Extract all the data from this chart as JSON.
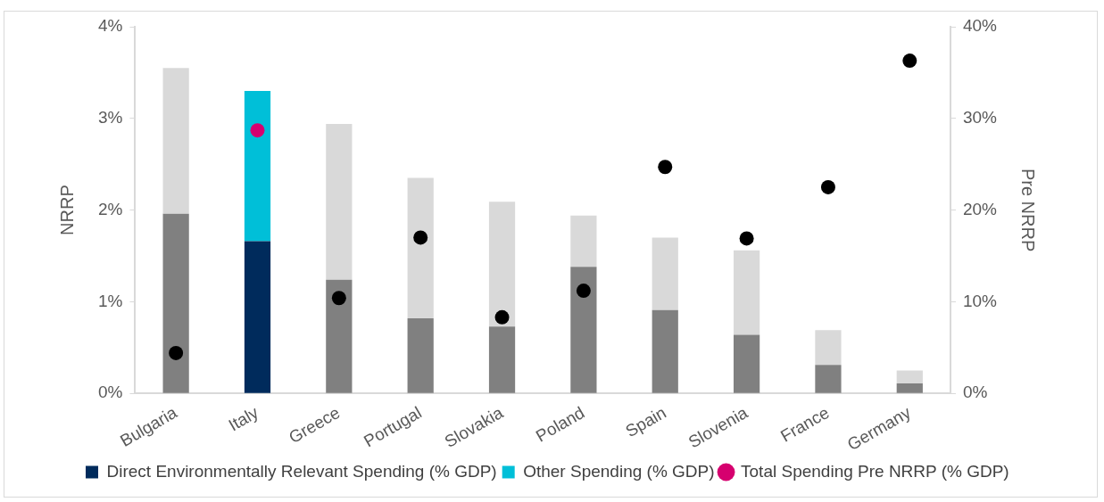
{
  "chart_data": {
    "type": "bar",
    "stacked": true,
    "legend": "bottom",
    "marker": "circle",
    "ylabel": "NRRP",
    "y2label": "Pre NRRP",
    "categories": [
      "Bulgaria",
      "Italy",
      "Greece",
      "Portugal",
      "Slovakia",
      "Poland",
      "Spain",
      "Slovenia",
      "France",
      "Germany"
    ],
    "ylim": [
      0,
      4
    ],
    "yticks": [
      {
        "value": 0,
        "label": "0%"
      },
      {
        "value": 1,
        "label": "1%"
      },
      {
        "value": 2,
        "label": "2%"
      },
      {
        "value": 3,
        "label": "3%"
      },
      {
        "value": 4,
        "label": "4%"
      }
    ],
    "y2lim": [
      0,
      40
    ],
    "y2ticks": [
      {
        "value": 0,
        "label": "0%"
      },
      {
        "value": 10,
        "label": "10%"
      },
      {
        "value": 20,
        "label": "20%"
      },
      {
        "value": 30,
        "label": "30%"
      },
      {
        "value": 40,
        "label": "40%"
      }
    ],
    "series": [
      {
        "name": "Direct Environmentally Relevant Spending (% GDP)",
        "color": "#002b5c",
        "colors": [
          "#808080",
          "#002b5c",
          "#808080",
          "#808080",
          "#808080",
          "#808080",
          "#808080",
          "#808080",
          "#808080",
          "#808080"
        ],
        "values": [
          1.96,
          1.66,
          1.24,
          0.82,
          0.73,
          1.38,
          0.91,
          0.64,
          0.31,
          0.11
        ]
      },
      {
        "name": "Other Spending (% GDP)",
        "color": "#00bfd8",
        "colors": [
          "#d9d9d9",
          "#00bfd8",
          "#d9d9d9",
          "#d9d9d9",
          "#d9d9d9",
          "#d9d9d9",
          "#d9d9d9",
          "#d9d9d9",
          "#d9d9d9",
          "#d9d9d9"
        ],
        "values": [
          1.59,
          1.64,
          1.7,
          1.53,
          1.36,
          0.56,
          0.79,
          0.92,
          0.38,
          0.14
        ]
      },
      {
        "name": "Total Spending Pre NRRP (% GDP)",
        "type": "scatter",
        "axis": "y2",
        "color": "#d6006f",
        "colors": [
          "#000000",
          "#d6006f",
          "#000000",
          "#000000",
          "#000000",
          "#000000",
          "#000000",
          "#000000",
          "#000000",
          "#000000"
        ],
        "x": [
          "Bulgaria",
          "Italy",
          "Greece",
          "Portugal",
          "Slovakia",
          "Poland",
          "Spain",
          "Slovenia",
          "France",
          "Germany"
        ],
        "values": [
          4.4,
          28.7,
          10.4,
          17.0,
          8.3,
          11.2,
          24.7,
          16.9,
          22.5,
          36.3
        ]
      }
    ]
  }
}
